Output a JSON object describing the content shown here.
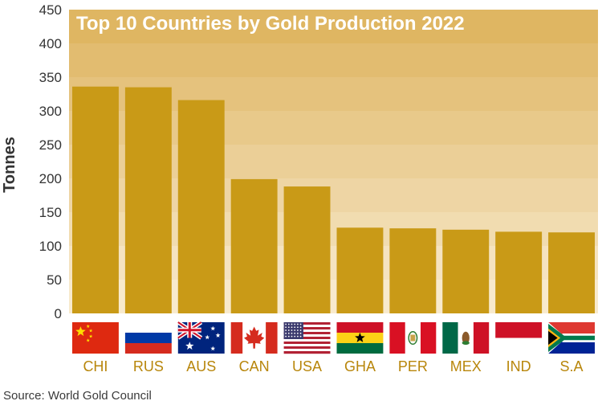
{
  "chart_data": {
    "type": "bar",
    "title": "Top 10 Countries by Gold Production 2022",
    "xlabel": "",
    "ylabel": "Tonnes",
    "ylim": [
      0,
      450
    ],
    "yticks": [
      0,
      50,
      100,
      150,
      200,
      250,
      300,
      350,
      400,
      450
    ],
    "categories": [
      "CHI",
      "RUS",
      "AUS",
      "CAN",
      "USA",
      "GHA",
      "PER",
      "MEX",
      "IND",
      "S.A"
    ],
    "values": [
      336,
      335,
      316,
      199,
      188,
      127,
      126,
      124,
      121,
      120
    ],
    "flags": [
      "china-flag",
      "russia-flag",
      "australia-flag",
      "canada-flag",
      "usa-flag",
      "ghana-flag",
      "peru-flag",
      "mexico-flag",
      "indonesia-flag",
      "south-africa-flag"
    ],
    "bar_color": "#c99a17",
    "background_bands": [
      "#f8eacd",
      "#f5e3c0",
      "#f1dcb0",
      "#eed5a4",
      "#ebcf97",
      "#e8c98a",
      "#e5c27d",
      "#e2bc70",
      "#dfb662"
    ],
    "grid": false,
    "legend": "none"
  },
  "source": "Source: World Gold Council"
}
